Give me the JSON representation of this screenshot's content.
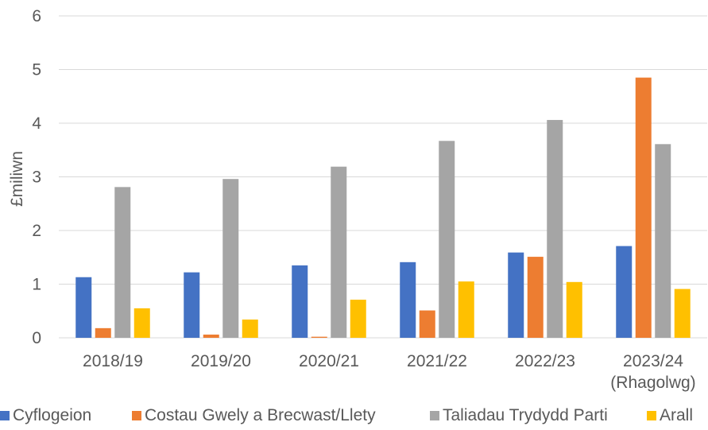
{
  "chart_data": {
    "type": "bar",
    "ylabel": "£miliwn",
    "ylim": [
      0,
      6
    ],
    "yticks": [
      0,
      1,
      2,
      3,
      4,
      5,
      6
    ],
    "grid": true,
    "legend_position": "bottom",
    "categories": [
      [
        "2018/19"
      ],
      [
        "2019/20"
      ],
      [
        "2020/21"
      ],
      [
        "2021/22"
      ],
      [
        "2022/23"
      ],
      [
        "2023/24",
        "(Rhagolwg)"
      ]
    ],
    "series": [
      {
        "name": "Cyflogeion",
        "color": "#4472C4",
        "values": [
          1.13,
          1.22,
          1.35,
          1.41,
          1.59,
          1.71
        ]
      },
      {
        "name": "Costau Gwely a Brecwast/Llety",
        "color": "#ED7D31",
        "values": [
          0.18,
          0.06,
          0.02,
          0.51,
          1.51,
          4.85
        ]
      },
      {
        "name": "Taliadau Trydydd Parti",
        "color": "#A5A5A5",
        "values": [
          2.81,
          2.96,
          3.19,
          3.67,
          4.06,
          3.61
        ]
      },
      {
        "name": "Arall",
        "color": "#FFC000",
        "values": [
          0.55,
          0.34,
          0.71,
          1.05,
          1.04,
          0.91
        ]
      }
    ]
  }
}
